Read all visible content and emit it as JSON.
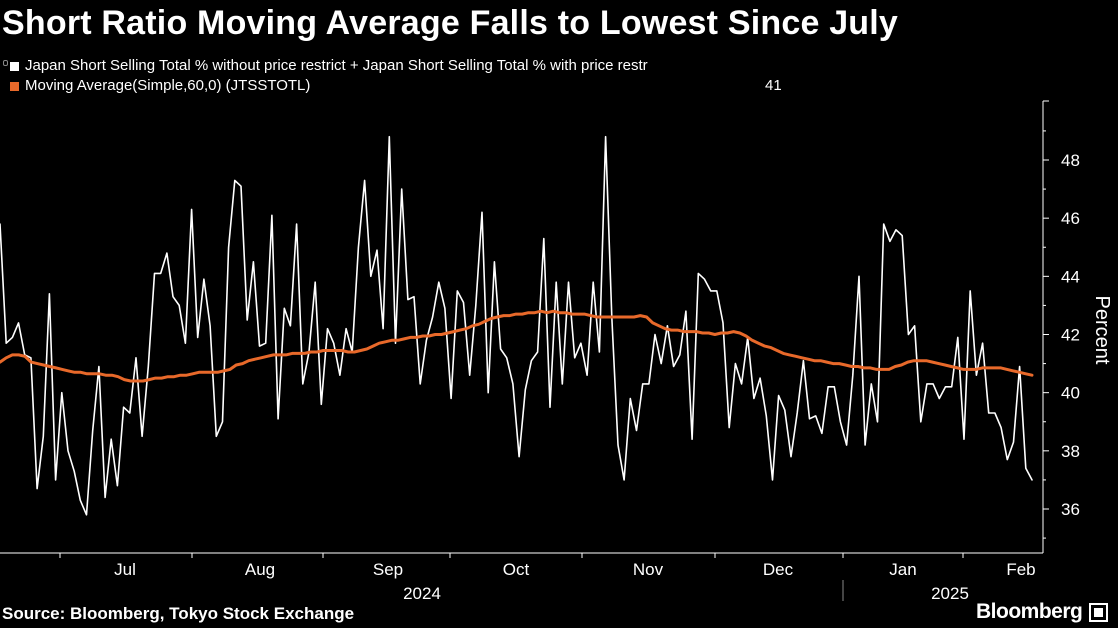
{
  "title": "Short Ratio Moving Average Falls to Lowest Since July",
  "source": "Source: Bloomberg, Tokyo Stock Exchange",
  "logo_text": "Bloomberg",
  "legend": {
    "series1_label": "Japan Short Selling Total % without price restrict + Japan Short Selling Total % with price restr",
    "series2_label": "Moving Average(Simple,60,0) (JTSSTOTL)",
    "series2_value": "41"
  },
  "colors": {
    "background": "#000000",
    "series1": "#ffffff",
    "series2": "#e8692a",
    "axis": "#ffffff"
  },
  "chart_data": {
    "type": "line",
    "ylabel": "Percent",
    "ylim": [
      34.6,
      50
    ],
    "yticks": [
      36,
      38,
      40,
      42,
      44,
      46,
      48
    ],
    "x_tick_labels": [
      "Jul",
      "Aug",
      "Sep",
      "Oct",
      "Nov",
      "Dec",
      "Jan",
      "Feb"
    ],
    "x_year_labels": [
      "2024",
      "2025"
    ],
    "grid": false,
    "legend_position": "top-left",
    "series": [
      {
        "name": "Japan Short Selling Total % without price restrict + Japan Short Selling Total % with price restr",
        "values": [
          45.8,
          41.7,
          41.9,
          42.4,
          41.3,
          41.2,
          36.7,
          38.5,
          43.4,
          37.0,
          40.0,
          38.0,
          37.3,
          36.3,
          35.8,
          38.7,
          40.9,
          36.4,
          38.4,
          36.8,
          39.5,
          39.3,
          41.2,
          38.5,
          40.9,
          44.1,
          44.1,
          44.8,
          43.3,
          43.0,
          41.7,
          46.3,
          41.9,
          43.9,
          42.3,
          38.5,
          39.0,
          45.0,
          47.3,
          47.1,
          42.5,
          44.5,
          41.6,
          41.7,
          46.1,
          39.1,
          42.9,
          42.3,
          45.8,
          40.3,
          41.4,
          43.8,
          39.6,
          42.2,
          41.7,
          40.6,
          42.2,
          41.4,
          45.0,
          47.3,
          44.0,
          44.9,
          42.2,
          48.8,
          41.7,
          47.0,
          43.2,
          43.3,
          40.3,
          41.8,
          42.6,
          43.8,
          42.9,
          39.8,
          43.5,
          43.1,
          40.6,
          43.0,
          46.2,
          40.0,
          44.5,
          41.5,
          41.2,
          40.3,
          37.8,
          40.1,
          41.1,
          41.4,
          45.3,
          39.5,
          43.8,
          40.3,
          43.8,
          41.2,
          41.7,
          40.6,
          43.8,
          41.4,
          48.8,
          42.6,
          38.2,
          37.0,
          39.8,
          38.7,
          40.3,
          40.3,
          42.0,
          41.0,
          42.3,
          40.9,
          41.3,
          42.8,
          38.4,
          44.1,
          43.9,
          43.5,
          43.5,
          42.4,
          38.8,
          41.0,
          40.3,
          41.9,
          39.8,
          40.5,
          39.2,
          37.0,
          39.9,
          39.4,
          37.8,
          39.3,
          41.1,
          39.1,
          39.2,
          38.6,
          40.2,
          40.2,
          39.0,
          38.2,
          40.6,
          44.0,
          38.2,
          40.3,
          39.0,
          45.8,
          45.2,
          45.6,
          45.4,
          42.0,
          42.3,
          39.0,
          40.3,
          40.3,
          39.8,
          40.2,
          40.2,
          41.9,
          38.4,
          43.5,
          40.6,
          41.7,
          39.3,
          39.3,
          38.8,
          37.7,
          38.3,
          40.9,
          37.4,
          37.0
        ]
      },
      {
        "name": "Moving Average(Simple,60,0) (JTSSTOTL)",
        "values": [
          41.05,
          41.2,
          41.3,
          41.3,
          41.25,
          41.05,
          41.0,
          40.95,
          40.9,
          40.85,
          40.8,
          40.75,
          40.7,
          40.7,
          40.65,
          40.65,
          40.65,
          40.6,
          40.6,
          40.55,
          40.45,
          40.4,
          40.4,
          40.4,
          40.45,
          40.5,
          40.5,
          40.55,
          40.55,
          40.6,
          40.6,
          40.65,
          40.7,
          40.7,
          40.7,
          40.7,
          40.75,
          40.8,
          40.95,
          41.0,
          41.1,
          41.15,
          41.2,
          41.25,
          41.3,
          41.3,
          41.3,
          41.35,
          41.35,
          41.35,
          41.4,
          41.4,
          41.45,
          41.45,
          41.45,
          41.45,
          41.4,
          41.4,
          41.45,
          41.5,
          41.6,
          41.7,
          41.75,
          41.8,
          41.8,
          41.85,
          41.9,
          41.9,
          41.95,
          41.95,
          42.0,
          42.0,
          42.05,
          42.1,
          42.15,
          42.2,
          42.3,
          42.35,
          42.45,
          42.55,
          42.6,
          42.65,
          42.65,
          42.7,
          42.7,
          42.75,
          42.75,
          42.8,
          42.75,
          42.8,
          42.75,
          42.75,
          42.7,
          42.7,
          42.7,
          42.65,
          42.6,
          42.6,
          42.6,
          42.6,
          42.6,
          42.6,
          42.6,
          42.65,
          42.6,
          42.4,
          42.3,
          42.2,
          42.15,
          42.15,
          42.1,
          42.1,
          42.1,
          42.05,
          42.05,
          42.0,
          42.05,
          42.05,
          42.1,
          42.05,
          41.95,
          41.8,
          41.7,
          41.6,
          41.55,
          41.45,
          41.35,
          41.3,
          41.25,
          41.2,
          41.15,
          41.1,
          41.1,
          41.05,
          41.0,
          41.0,
          40.95,
          40.9,
          40.9,
          40.85,
          40.85,
          40.8,
          40.8,
          40.8,
          40.9,
          40.95,
          41.05,
          41.1,
          41.1,
          41.1,
          41.05,
          41.0,
          40.95,
          40.9,
          40.85,
          40.8,
          40.8,
          40.8,
          40.85,
          40.85,
          40.85,
          40.85,
          40.8,
          40.75,
          40.7,
          40.65,
          40.6
        ]
      }
    ]
  }
}
